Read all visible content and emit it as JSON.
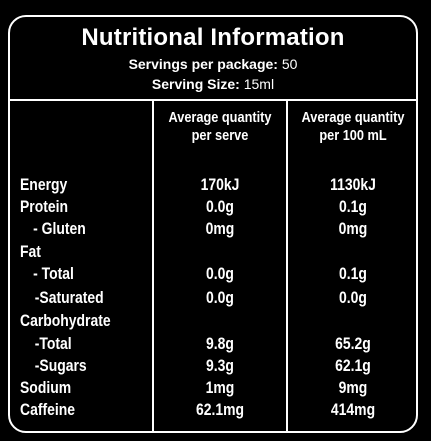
{
  "title": "Nutritional Information",
  "servings_label": "Servings per package:",
  "servings_value": "50",
  "serving_size_label": "Serving Size:",
  "serving_size_value": "15ml",
  "col1_line1": "Average quantity",
  "col1_line2": "per serve",
  "col2_line1": "Average quantity",
  "col2_line2": "per 100 mL",
  "rows": [
    {
      "label": "Energy",
      "serve": "170kJ",
      "per100": "1130kJ"
    },
    {
      "label": "Protein",
      "serve": "0.0g",
      "per100": "0.1g"
    },
    {
      "label": "- Gluten",
      "serve": "0mg",
      "per100": "0mg"
    },
    {
      "label": "Fat",
      "serve": "",
      "per100": ""
    },
    {
      "label": "- Total",
      "serve": "0.0g",
      "per100": "0.1g"
    },
    {
      "label": "-Saturated",
      "serve": "0.0g",
      "per100": "0.0g"
    },
    {
      "label": "Carbohydrate",
      "serve": "",
      "per100": ""
    },
    {
      "label": "-Total",
      "serve": "9.8g",
      "per100": "65.2g"
    },
    {
      "label": "-Sugars",
      "serve": "9.3g",
      "per100": "62.1g"
    },
    {
      "label": "Sodium",
      "serve": "1mg",
      "per100": "9mg"
    },
    {
      "label": "Caffeine",
      "serve": "62.1mg",
      "per100": "414mg"
    }
  ]
}
